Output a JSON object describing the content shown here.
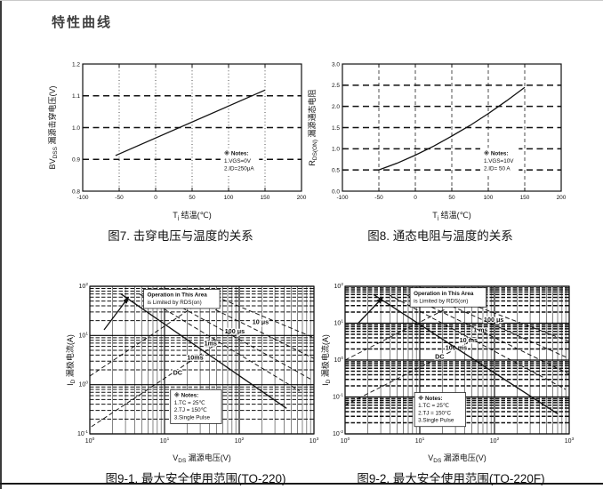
{
  "page": {
    "title": "特性曲线"
  },
  "chart_data": [
    {
      "type": "line",
      "title": "图7. 击穿电压与温度的关系",
      "xlabel": {
        "main": "T",
        "sub": "j",
        "rest": " 结温(℃)"
      },
      "ylabel": {
        "main": "BV",
        "sub": "DSS",
        "rest": " 漏源击穿电压(V)"
      },
      "xlim": [
        -100,
        200
      ],
      "ylim": [
        0.8,
        1.2
      ],
      "xticks": [
        -100,
        -50,
        0,
        50,
        100,
        150,
        200
      ],
      "yticks": [
        0.8,
        0.9,
        1.0,
        1.1,
        1.2
      ],
      "ydec": 1,
      "grid_x": [
        -50,
        0,
        50,
        100,
        150
      ],
      "grid_x_style": "dotted",
      "grid_y": [
        0.9,
        1.0,
        1.1
      ],
      "series": [
        {
          "name": "breakdown-voltage-vs-temp",
          "style": "solid",
          "x": [
            -55,
            150
          ],
          "y": [
            0.912,
            1.118
          ]
        }
      ],
      "notes": {
        "lines": [
          "※ Notes:",
          "1.VGS=0V",
          "2.ID=250μA"
        ],
        "fx": 0.63,
        "fy": 0.66,
        "boxed": false
      }
    },
    {
      "type": "line",
      "title": "图8. 通态电阻与温度的关系",
      "xlabel": {
        "main": "T",
        "sub": "j",
        "rest": " 结温(℃)"
      },
      "ylabel": {
        "main": "R",
        "sub": "DS(ON)",
        "rest": " 漏源通态电阻"
      },
      "xlim": [
        -100,
        200
      ],
      "ylim": [
        0.0,
        3.0
      ],
      "xticks": [
        -100,
        -50,
        0,
        50,
        100,
        150,
        200
      ],
      "yticks": [
        0.0,
        0.5,
        1.0,
        1.5,
        2.0,
        2.5,
        3.0
      ],
      "ydec": 1,
      "grid_x": [
        -50,
        0,
        50,
        100,
        150
      ],
      "grid_x_style": "dashed",
      "grid_y": [
        0.5,
        1.0,
        1.5,
        2.0,
        2.5
      ],
      "series": [
        {
          "name": "rdson-vs-temp",
          "style": "solid",
          "x": [
            -50,
            -25,
            0,
            25,
            50,
            75,
            100,
            125,
            150
          ],
          "y": [
            0.5,
            0.66,
            0.85,
            1.06,
            1.3,
            1.55,
            1.83,
            2.13,
            2.45
          ]
        }
      ],
      "notes": {
        "lines": [
          "※ Notes:",
          "1.VGS=10V",
          "2.ID= 50 A"
        ],
        "fx": 0.63,
        "fy": 0.66,
        "boxed": false
      }
    },
    {
      "type": "loglog",
      "title": "图9-1. 最大安全使用范围(TO-220)",
      "xlabel": {
        "main": "V",
        "sub": "DS",
        "rest": " 漏源电压(V)"
      },
      "ylabel": {
        "main": "I",
        "sub": "D",
        "rest": " 漏极电流(A)"
      },
      "xlim": [
        1,
        1000
      ],
      "ylim": [
        0.1,
        100
      ],
      "heavy_grid": false,
      "annotation": {
        "lines": [
          "Operation in This Area",
          "is Limited by RDS(on)"
        ],
        "fx": 0.24,
        "fy": 0.02
      },
      "notes": {
        "lines": [
          "※ Notes:",
          "1.TC = 25℃",
          "2.TJ = 150℃",
          "3.Single Pulse"
        ],
        "fx": 0.36,
        "fy": 0.7,
        "boxed": true
      },
      "lines": [
        {
          "name": "rdson-limit",
          "style": "solid",
          "arrow": true,
          "pts": [
            [
              1.55,
              13
            ],
            [
              3.3,
              60
            ]
          ]
        },
        {
          "name": "ascend-1",
          "style": "dashed",
          "pts": [
            [
              1.0,
              1.5
            ],
            [
              28,
              44
            ]
          ]
        },
        {
          "name": "ascend-2",
          "style": "dashed",
          "pts": [
            [
              1.05,
              0.14
            ],
            [
              48,
              6.5
            ]
          ]
        },
        {
          "name": "10us",
          "style": "dashed",
          "pts": [
            [
              40,
              70
            ],
            [
              1000,
              9
            ]
          ],
          "label": "10 μs",
          "lx": 150,
          "ly": 17
        },
        {
          "name": "100us",
          "style": "dashed",
          "pts": [
            [
              18,
              70
            ],
            [
              1000,
              3.4
            ]
          ],
          "label": "100 μs",
          "lx": 64,
          "ly": 11
        },
        {
          "name": "1ms",
          "style": "dashed",
          "pts": [
            [
              8,
              70
            ],
            [
              900,
              1.3
            ]
          ],
          "label": "1ms",
          "lx": 34,
          "ly": 6.3
        },
        {
          "name": "10ms",
          "style": "dashed",
          "pts": [
            [
              4.6,
              70
            ],
            [
              640,
              0.75
            ]
          ],
          "label": "10ms",
          "lx": 20,
          "ly": 3.2
        },
        {
          "name": "dc",
          "style": "solid",
          "pts": [
            [
              2.6,
              70
            ],
            [
              430,
              0.33
            ]
          ],
          "label": "DC",
          "lx": 13,
          "ly": 1.6
        }
      ]
    },
    {
      "type": "loglog",
      "title": "图9-2. 最大安全使用范围(TO-220F)",
      "xlabel": {
        "main": "V",
        "sub": "DS",
        "rest": " 漏源电压(V)"
      },
      "ylabel": {
        "main": "I",
        "sub": "D",
        "rest": " 漏极电流(A)"
      },
      "xlim": [
        1,
        1000
      ],
      "ylim": [
        0.01,
        100
      ],
      "heavy_grid": true,
      "annotation": {
        "lines": [
          "Operation in This Area",
          "is Limited by RDS(on)"
        ],
        "fx": 0.29,
        "fy": 0.01
      },
      "notes": {
        "lines": [
          "※ Notes:",
          "1.TC = 25℃",
          "2.TJ = 150°C",
          "3.Single Pulse"
        ],
        "fx": 0.31,
        "fy": 0.72,
        "boxed": true
      },
      "lines": [
        {
          "name": "rdson-limit",
          "style": "solid",
          "arrow": true,
          "pts": [
            [
              1.5,
              10
            ],
            [
              3.2,
              50
            ]
          ]
        },
        {
          "name": "ascend-1",
          "style": "dashed",
          "pts": [
            [
              1.0,
              1.0
            ],
            [
              22,
              24
            ]
          ]
        },
        {
          "name": "ascend-2",
          "style": "dashed",
          "pts": [
            [
              1.0,
              0.06
            ],
            [
              60,
              4.0
            ]
          ]
        },
        {
          "name": "100us",
          "style": "dashed",
          "pts": [
            [
              22,
              60
            ],
            [
              1000,
              3.2
            ]
          ],
          "label": "100 μs",
          "lx": 72,
          "ly": 11
        },
        {
          "name": "1ms",
          "style": "dashed",
          "pts": [
            [
              12,
              60
            ],
            [
              1000,
              1.1
            ]
          ],
          "label": "1 ms",
          "lx": 52,
          "ly": 5.8
        },
        {
          "name": "10ms",
          "style": "dashed",
          "pts": [
            [
              6.5,
              60
            ],
            [
              1000,
              0.42
            ]
          ],
          "label": "10 ms",
          "lx": 34,
          "ly": 3.0
        },
        {
          "name": "100ms",
          "style": "dashed",
          "pts": [
            [
              3.8,
              60
            ],
            [
              900,
              0.16
            ]
          ],
          "label": "100 ms",
          "lx": 22,
          "ly": 1.9
        },
        {
          "name": "dc",
          "style": "solid",
          "pts": [
            [
              2.4,
              60
            ],
            [
              700,
              0.035
            ]
          ],
          "label": "DC",
          "lx": 16,
          "ly": 1.1
        }
      ]
    }
  ]
}
